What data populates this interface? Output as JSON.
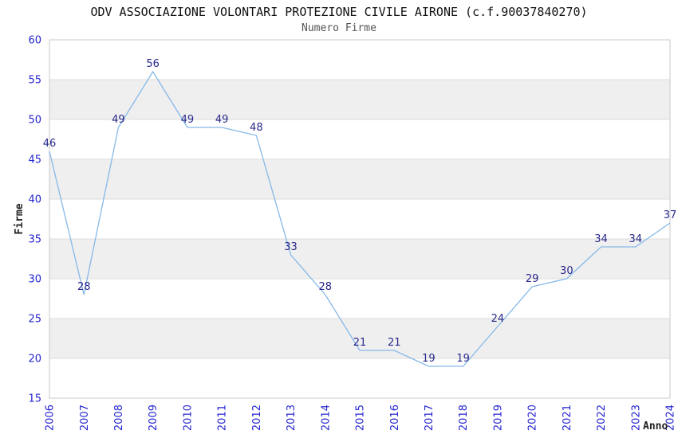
{
  "chart_data": {
    "type": "line",
    "title": "ODV ASSOCIAZIONE VOLONTARI PROTEZIONE CIVILE AIRONE (c.f.90037840270)",
    "subtitle": "Numero Firme",
    "xlabel": "Anno",
    "ylabel": "Firme",
    "categories": [
      "2006",
      "2007",
      "2008",
      "2009",
      "2010",
      "2011",
      "2012",
      "2013",
      "2014",
      "2015",
      "2016",
      "2017",
      "2018",
      "2019",
      "2020",
      "2021",
      "2022",
      "2023",
      "2024"
    ],
    "values": [
      46,
      28,
      49,
      56,
      49,
      49,
      48,
      33,
      28,
      21,
      21,
      19,
      19,
      24,
      29,
      30,
      34,
      34,
      37
    ],
    "ylim": [
      15,
      60
    ],
    "ytick_step": 5,
    "grid": "alternating-horizontal-bands",
    "legend": "none",
    "data_labels_shown": true,
    "colors": {
      "line": "#85b8e8",
      "data_label": "#28288c",
      "tick_label": "#2525d0",
      "band": "#efefef",
      "grid_line": "#dcdcdc",
      "plot_border": "#c9c9c9",
      "title": "#111111",
      "subtitle": "#555555",
      "axis_title": "#222222"
    }
  }
}
